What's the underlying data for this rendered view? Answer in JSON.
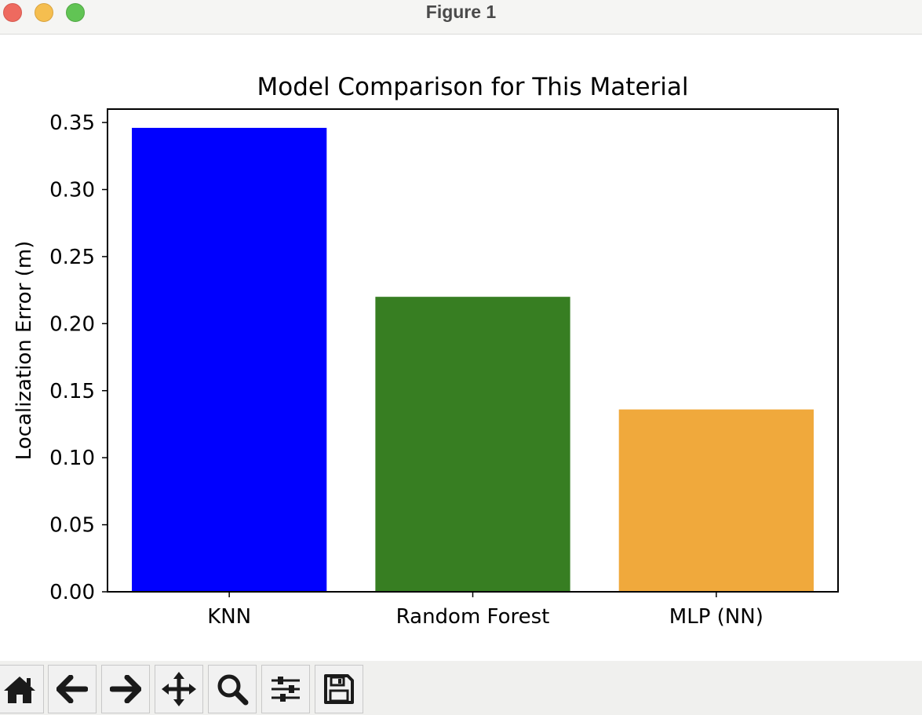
{
  "window": {
    "title": "Figure 1"
  },
  "toolbar": {
    "buttons": [
      {
        "name": "home-icon"
      },
      {
        "name": "back-arrow-icon"
      },
      {
        "name": "forward-arrow-icon"
      },
      {
        "name": "pan-move-icon"
      },
      {
        "name": "zoom-magnifier-icon"
      },
      {
        "name": "configure-subplots-icon"
      },
      {
        "name": "save-floppy-icon"
      }
    ]
  },
  "chart_data": {
    "type": "bar",
    "title": "Model Comparison for This Material",
    "xlabel": "",
    "ylabel": "Localization Error (m)",
    "categories": [
      "KNN",
      "Random Forest",
      "MLP (NN)"
    ],
    "values": [
      0.346,
      0.22,
      0.136
    ],
    "colors": [
      "#0000ff",
      "#377e22",
      "#f0a93c"
    ],
    "ylim": [
      0,
      0.36
    ],
    "yticks": [
      "0.00",
      "0.05",
      "0.10",
      "0.15",
      "0.20",
      "0.25",
      "0.30",
      "0.35"
    ],
    "ytick_values": [
      0,
      0.05,
      0.1,
      0.15,
      0.2,
      0.25,
      0.3,
      0.35
    ],
    "grid": false,
    "legend": "none"
  }
}
